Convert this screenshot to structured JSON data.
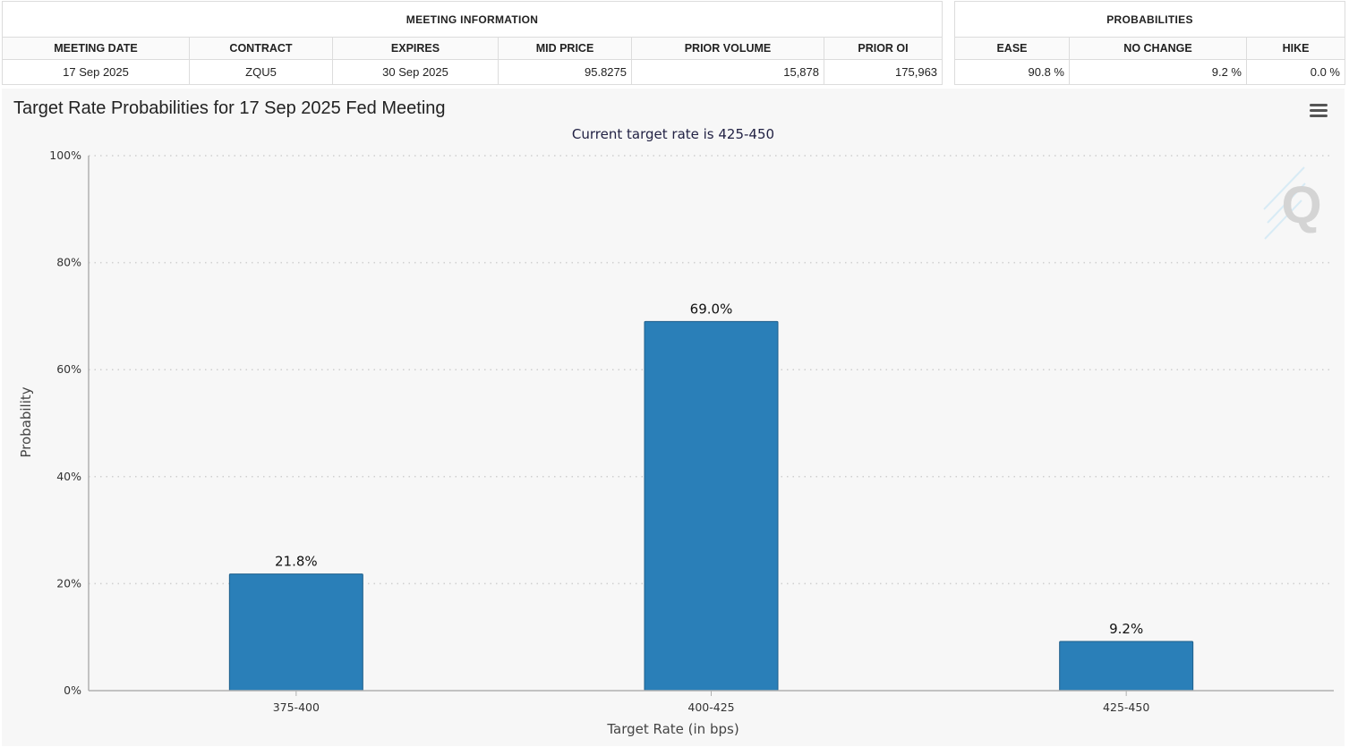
{
  "meeting_info": {
    "title": "MEETING INFORMATION",
    "headers": [
      "MEETING DATE",
      "CONTRACT",
      "EXPIRES",
      "MID PRICE",
      "PRIOR VOLUME",
      "PRIOR OI"
    ],
    "values": [
      "17 Sep 2025",
      "ZQU5",
      "30 Sep 2025",
      "95.8275",
      "15,878",
      "175,963"
    ]
  },
  "probabilities": {
    "title": "PROBABILITIES",
    "headers": [
      "EASE",
      "NO CHANGE",
      "HIKE"
    ],
    "values": [
      "90.8 %",
      "9.2 %",
      "0.0 %"
    ]
  },
  "chart_data": {
    "type": "bar",
    "title": "Target Rate Probabilities for 17 Sep 2025 Fed Meeting",
    "subtitle": "Current target rate is 425-450",
    "categories": [
      "375-400",
      "400-425",
      "425-450"
    ],
    "values": [
      21.8,
      69.0,
      9.2
    ],
    "data_labels": [
      "21.8%",
      "69.0%",
      "9.2%"
    ],
    "xlabel": "Target Rate (in bps)",
    "ylabel": "Probability",
    "ylim": [
      0,
      100
    ],
    "yticks": [
      "0%",
      "20%",
      "40%",
      "60%",
      "80%",
      "100%"
    ],
    "bar_color": "#2a7fb8",
    "grid": true,
    "legend": "none"
  },
  "icons": {
    "menu": "hamburger-menu-icon",
    "watermark": "quikstrike-q-logo"
  }
}
